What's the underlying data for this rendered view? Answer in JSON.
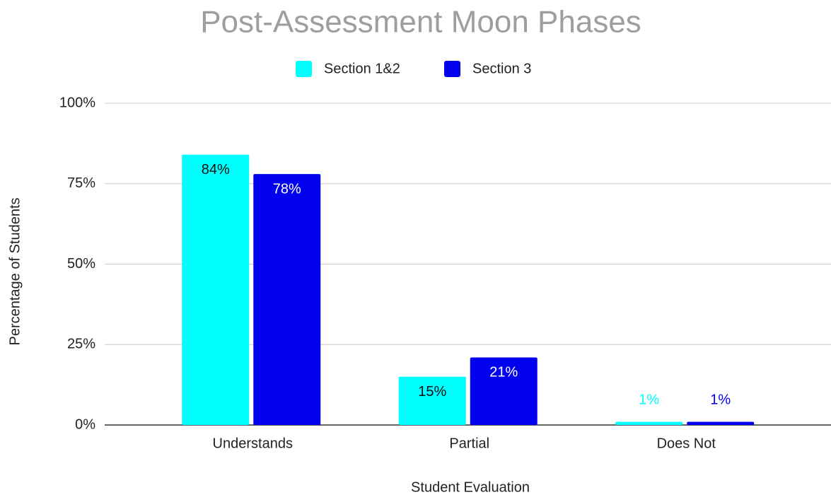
{
  "chart_data": {
    "type": "bar",
    "title": "Post-Assessment Moon Phases",
    "x_label": "Student Evaluation",
    "y_label": "Percentage of Students",
    "categories": [
      "Understands",
      "Partial",
      "Does Not"
    ],
    "series": [
      {
        "name": "Section 1&2",
        "color": "#00ffff",
        "values": [
          84,
          15,
          1
        ],
        "value_labels": [
          "84%",
          "15%",
          "1%"
        ]
      },
      {
        "name": "Section 3",
        "color": "#0000ee",
        "values": [
          78,
          21,
          1
        ],
        "value_labels": [
          "78%",
          "21%",
          "1%"
        ]
      }
    ],
    "ylim": [
      0,
      100
    ],
    "yticks": [
      {
        "value": 0,
        "label": "0%"
      },
      {
        "value": 25,
        "label": "25%"
      },
      {
        "value": 50,
        "label": "50%"
      },
      {
        "value": 75,
        "label": "75%"
      },
      {
        "value": 100,
        "label": "100%"
      }
    ],
    "grid": true,
    "legend": "top"
  }
}
